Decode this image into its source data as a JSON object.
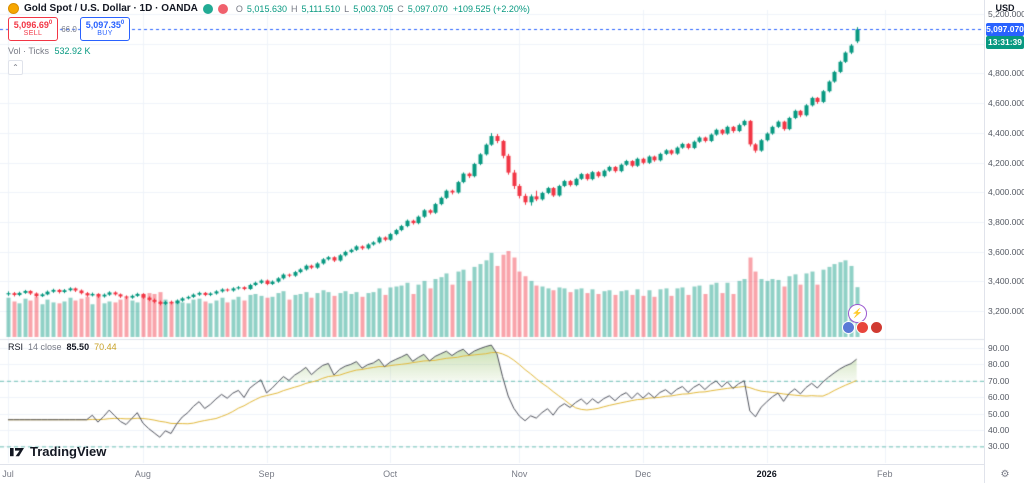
{
  "header": {
    "symbol_title": "Gold Spot / U.S. Dollar · 1D · OANDA",
    "ohlc": {
      "o_label": "O",
      "o": "5,015.630",
      "h_label": "H",
      "h": "5,111.510",
      "l_label": "L",
      "l": "5,003.705",
      "c_label": "C",
      "c": "5,097.070",
      "change": "+109.525 (+2.20%)"
    }
  },
  "trade_panel": {
    "sell_price": "5,096.69",
    "sell_sup": "0",
    "sell_label": "SELL",
    "spread": "66.0",
    "buy_price": "5,097.35",
    "buy_sup": "0",
    "buy_label": "BUY"
  },
  "volume_row": {
    "label": "Vol · Ticks",
    "value": "532.92 K"
  },
  "rsi_legend": {
    "name": "RSI",
    "params": "14 close",
    "value": "85.50",
    "ma_value": "70.44"
  },
  "logo": {
    "text": "TradingView"
  },
  "icons": {
    "gear": "⚙",
    "lightning": "⚡",
    "chevron_up": "⌃"
  },
  "axis": {
    "currency": "USD",
    "price_badge": "5,097.070",
    "countdown": "13:31:39",
    "price_ticks": [
      {
        "value": 5200,
        "label": "5,200.000"
      },
      {
        "value": 5000,
        "label": "5,000.000"
      },
      {
        "value": 4800,
        "label": "4,800.000"
      },
      {
        "value": 4600,
        "label": "4,600.000"
      },
      {
        "value": 4400,
        "label": "4,400.000"
      },
      {
        "value": 4200,
        "label": "4,200.000"
      },
      {
        "value": 4000,
        "label": "4,000.000"
      },
      {
        "value": 3800,
        "label": "3,800.000"
      },
      {
        "value": 3600,
        "label": "3,600.000"
      },
      {
        "value": 3400,
        "label": "3,400.000"
      },
      {
        "value": 3200,
        "label": "3,200.000"
      }
    ],
    "rsi_ticks": [
      {
        "value": 90,
        "label": "90.00"
      },
      {
        "value": 80,
        "label": "80.00"
      },
      {
        "value": 70,
        "label": "70.00"
      },
      {
        "value": 60,
        "label": "60.00"
      },
      {
        "value": 50,
        "label": "50.00"
      },
      {
        "value": 40,
        "label": "40.00"
      },
      {
        "value": 30,
        "label": "30.00"
      }
    ],
    "time_ticks": [
      {
        "index": 0,
        "label": "Jul",
        "major": false
      },
      {
        "index": 24,
        "label": "Aug",
        "major": false
      },
      {
        "index": 46,
        "label": "Sep",
        "major": false
      },
      {
        "index": 68,
        "label": "Oct",
        "major": false
      },
      {
        "index": 91,
        "label": "Nov",
        "major": false
      },
      {
        "index": 113,
        "label": "Dec",
        "major": false
      },
      {
        "index": 135,
        "label": "2026",
        "major": true
      },
      {
        "index": 156,
        "label": "Feb",
        "major": false
      }
    ]
  },
  "colors": {
    "up": "#089981",
    "down": "#F23645",
    "vol_up": "rgba(8,153,129,0.45)",
    "vol_down": "rgba(242,54,69,0.45)",
    "buy_blue": "#2962FF",
    "sell_red": "#F23645",
    "rsi_line": "#50535e",
    "rsi_ma": "#e2b93b",
    "rsi_level": "rgba(8,153,129,0.55)",
    "grid": "#f0f3fa",
    "divider": "#e0e3eb"
  },
  "chart_data": {
    "type": "candlestick",
    "symbol": "Gold Spot / U.S. Dollar",
    "exchange": "OANDA",
    "timeframe": "1D",
    "currency": "USD",
    "price_axis_range": [
      3140,
      5290
    ],
    "volume_unit": "K ticks",
    "last": {
      "open": 5015.63,
      "high": 5111.51,
      "low": 5003.705,
      "close": 5097.07,
      "change": 109.525,
      "change_pct": 2.2,
      "volume_k": 532.92
    },
    "rsi": {
      "period": 14,
      "source": "close",
      "value": 85.5,
      "ma_value": 70.44,
      "levels": [
        70,
        30
      ],
      "range": [
        25,
        95
      ]
    },
    "candles": [
      [
        3312,
        3332,
        3302,
        3320,
        420
      ],
      [
        3320,
        3328,
        3298,
        3308,
        380
      ],
      [
        3308,
        3330,
        3300,
        3322,
        360
      ],
      [
        3322,
        3342,
        3315,
        3335,
        410
      ],
      [
        3335,
        3340,
        3308,
        3318,
        390
      ],
      [
        3318,
        3325,
        3292,
        3300,
        430
      ],
      [
        3300,
        3320,
        3294,
        3312,
        350
      ],
      [
        3312,
        3338,
        3306,
        3330,
        400
      ],
      [
        3330,
        3350,
        3322,
        3342,
        370
      ],
      [
        3342,
        3348,
        3318,
        3328,
        360
      ],
      [
        3328,
        3348,
        3320,
        3340,
        380
      ],
      [
        3340,
        3360,
        3332,
        3352,
        420
      ],
      [
        3352,
        3358,
        3328,
        3338,
        390
      ],
      [
        3338,
        3345,
        3312,
        3320,
        410
      ],
      [
        3320,
        3328,
        3296,
        3305,
        430
      ],
      [
        3305,
        3324,
        3298,
        3315,
        350
      ],
      [
        3315,
        3320,
        3288,
        3298,
        440
      ],
      [
        3298,
        3318,
        3290,
        3310,
        360
      ],
      [
        3310,
        3333,
        3302,
        3325,
        380
      ],
      [
        3325,
        3332,
        3304,
        3312,
        370
      ],
      [
        3312,
        3318,
        3288,
        3298,
        400
      ],
      [
        3298,
        3305,
        3280,
        3290,
        420
      ],
      [
        3290,
        3310,
        3282,
        3302,
        390
      ],
      [
        3302,
        3323,
        3295,
        3315,
        370
      ],
      [
        3315,
        3320,
        3282,
        3290,
        450
      ],
      [
        3290,
        3298,
        3266,
        3275,
        470
      ],
      [
        3275,
        3284,
        3252,
        3262,
        460
      ],
      [
        3262,
        3270,
        3238,
        3248,
        480
      ],
      [
        3248,
        3268,
        3240,
        3260,
        400
      ],
      [
        3260,
        3270,
        3244,
        3252,
        380
      ],
      [
        3252,
        3278,
        3246,
        3270,
        390
      ],
      [
        3270,
        3293,
        3262,
        3285,
        370
      ],
      [
        3285,
        3303,
        3278,
        3295,
        360
      ],
      [
        3295,
        3318,
        3288,
        3310,
        400
      ],
      [
        3310,
        3330,
        3302,
        3322,
        410
      ],
      [
        3322,
        3328,
        3300,
        3308,
        380
      ],
      [
        3308,
        3326,
        3300,
        3318,
        360
      ],
      [
        3318,
        3340,
        3310,
        3332,
        390
      ],
      [
        3332,
        3353,
        3324,
        3345,
        420
      ],
      [
        3345,
        3352,
        3330,
        3338,
        370
      ],
      [
        3338,
        3360,
        3330,
        3352,
        400
      ],
      [
        3352,
        3368,
        3344,
        3360,
        430
      ],
      [
        3360,
        3366,
        3340,
        3348,
        390
      ],
      [
        3348,
        3383,
        3342,
        3375,
        450
      ],
      [
        3375,
        3398,
        3368,
        3390,
        460
      ],
      [
        3390,
        3413,
        3382,
        3405,
        440
      ],
      [
        3405,
        3412,
        3374,
        3382,
        420
      ],
      [
        3382,
        3406,
        3375,
        3398,
        430
      ],
      [
        3398,
        3428,
        3390,
        3420,
        470
      ],
      [
        3420,
        3453,
        3412,
        3445,
        490
      ],
      [
        3445,
        3452,
        3428,
        3438,
        400
      ],
      [
        3438,
        3470,
        3430,
        3462,
        450
      ],
      [
        3462,
        3488,
        3454,
        3480,
        460
      ],
      [
        3480,
        3513,
        3472,
        3505,
        480
      ],
      [
        3505,
        3512,
        3482,
        3492,
        420
      ],
      [
        3492,
        3528,
        3484,
        3520,
        470
      ],
      [
        3520,
        3556,
        3512,
        3548,
        500
      ],
      [
        3548,
        3570,
        3540,
        3562,
        480
      ],
      [
        3562,
        3568,
        3530,
        3540,
        440
      ],
      [
        3540,
        3583,
        3532,
        3575,
        470
      ],
      [
        3575,
        3606,
        3567,
        3598,
        490
      ],
      [
        3598,
        3620,
        3590,
        3612,
        460
      ],
      [
        3612,
        3643,
        3604,
        3635,
        480
      ],
      [
        3635,
        3642,
        3612,
        3622,
        430
      ],
      [
        3622,
        3656,
        3614,
        3648,
        470
      ],
      [
        3648,
        3670,
        3640,
        3662,
        480
      ],
      [
        3662,
        3703,
        3654,
        3695,
        520
      ],
      [
        3695,
        3702,
        3670,
        3680,
        450
      ],
      [
        3680,
        3726,
        3672,
        3718,
        530
      ],
      [
        3718,
        3753,
        3710,
        3745,
        540
      ],
      [
        3745,
        3780,
        3737,
        3772,
        550
      ],
      [
        3772,
        3816,
        3764,
        3808,
        580
      ],
      [
        3808,
        3815,
        3782,
        3792,
        460
      ],
      [
        3792,
        3843,
        3784,
        3835,
        560
      ],
      [
        3835,
        3886,
        3827,
        3878,
        600
      ],
      [
        3878,
        3885,
        3850,
        3862,
        520
      ],
      [
        3862,
        3928,
        3854,
        3920,
        620
      ],
      [
        3920,
        3970,
        3912,
        3962,
        640
      ],
      [
        3962,
        4018,
        3954,
        4010,
        680
      ],
      [
        4010,
        4017,
        3985,
        3998,
        560
      ],
      [
        3998,
        4076,
        3990,
        4068,
        700
      ],
      [
        4068,
        4133,
        4060,
        4125,
        720
      ],
      [
        4125,
        4132,
        4095,
        4108,
        600
      ],
      [
        4108,
        4198,
        4100,
        4190,
        750
      ],
      [
        4190,
        4263,
        4182,
        4255,
        780
      ],
      [
        4255,
        4328,
        4247,
        4320,
        820
      ],
      [
        4320,
        4398,
        4312,
        4378,
        900
      ],
      [
        4378,
        4392,
        4330,
        4345,
        760
      ],
      [
        4345,
        4352,
        4228,
        4245,
        880
      ],
      [
        4245,
        4258,
        4118,
        4132,
        920
      ],
      [
        4132,
        4150,
        4022,
        4042,
        850
      ],
      [
        4042,
        4055,
        3958,
        3975,
        700
      ],
      [
        3975,
        3990,
        3915,
        3932,
        650
      ],
      [
        3932,
        3985,
        3910,
        3972,
        600
      ],
      [
        3972,
        4010,
        3940,
        3952,
        550
      ],
      [
        3952,
        4003,
        3944,
        3995,
        540
      ],
      [
        3995,
        4036,
        3987,
        4028,
        520
      ],
      [
        4028,
        4035,
        3968,
        3978,
        500
      ],
      [
        3978,
        4050,
        3970,
        4042,
        530
      ],
      [
        4042,
        4083,
        4034,
        4075,
        520
      ],
      [
        4075,
        4082,
        4038,
        4048,
        480
      ],
      [
        4048,
        4098,
        4040,
        4090,
        510
      ],
      [
        4090,
        4130,
        4082,
        4122,
        520
      ],
      [
        4122,
        4128,
        4078,
        4088,
        470
      ],
      [
        4088,
        4143,
        4080,
        4135,
        510
      ],
      [
        4135,
        4142,
        4098,
        4108,
        460
      ],
      [
        4108,
        4153,
        4100,
        4145,
        490
      ],
      [
        4145,
        4178,
        4137,
        4170,
        500
      ],
      [
        4170,
        4176,
        4132,
        4142,
        450
      ],
      [
        4142,
        4193,
        4134,
        4185,
        490
      ],
      [
        4185,
        4218,
        4177,
        4210,
        500
      ],
      [
        4210,
        4216,
        4168,
        4178,
        450
      ],
      [
        4178,
        4233,
        4170,
        4225,
        510
      ],
      [
        4225,
        4232,
        4188,
        4198,
        440
      ],
      [
        4198,
        4248,
        4190,
        4240,
        500
      ],
      [
        4240,
        4246,
        4205,
        4215,
        430
      ],
      [
        4215,
        4266,
        4207,
        4258,
        510
      ],
      [
        4258,
        4290,
        4250,
        4282,
        520
      ],
      [
        4282,
        4288,
        4250,
        4260,
        440
      ],
      [
        4260,
        4308,
        4252,
        4300,
        520
      ],
      [
        4300,
        4333,
        4292,
        4325,
        530
      ],
      [
        4325,
        4331,
        4288,
        4298,
        450
      ],
      [
        4298,
        4348,
        4290,
        4340,
        540
      ],
      [
        4340,
        4376,
        4332,
        4368,
        550
      ],
      [
        4368,
        4374,
        4335,
        4345,
        460
      ],
      [
        4345,
        4396,
        4337,
        4388,
        560
      ],
      [
        4388,
        4428,
        4380,
        4420,
        580
      ],
      [
        4420,
        4426,
        4385,
        4395,
        470
      ],
      [
        4395,
        4448,
        4387,
        4440,
        580
      ],
      [
        4440,
        4446,
        4400,
        4412,
        460
      ],
      [
        4412,
        4462,
        4404,
        4452,
        600
      ],
      [
        4452,
        4488,
        4444,
        4480,
        620
      ],
      [
        4480,
        4486,
        4308,
        4322,
        850
      ],
      [
        4322,
        4330,
        4266,
        4280,
        700
      ],
      [
        4280,
        4358,
        4272,
        4350,
        620
      ],
      [
        4350,
        4403,
        4342,
        4395,
        600
      ],
      [
        4395,
        4448,
        4387,
        4440,
        620
      ],
      [
        4440,
        4483,
        4432,
        4475,
        610
      ],
      [
        4475,
        4481,
        4414,
        4425,
        540
      ],
      [
        4425,
        4508,
        4417,
        4500,
        650
      ],
      [
        4500,
        4556,
        4492,
        4548,
        670
      ],
      [
        4548,
        4554,
        4505,
        4518,
        560
      ],
      [
        4518,
        4593,
        4510,
        4585,
        680
      ],
      [
        4585,
        4643,
        4577,
        4635,
        700
      ],
      [
        4635,
        4641,
        4595,
        4608,
        560
      ],
      [
        4608,
        4688,
        4600,
        4680,
        720
      ],
      [
        4680,
        4753,
        4672,
        4745,
        750
      ],
      [
        4745,
        4818,
        4737,
        4810,
        780
      ],
      [
        4810,
        4886,
        4802,
        4878,
        800
      ],
      [
        4878,
        4948,
        4870,
        4940,
        820
      ],
      [
        4940,
        4998,
        4930,
        4987.545,
        760
      ],
      [
        5015.63,
        5111.51,
        5003.705,
        5097.07,
        532.92
      ]
    ]
  }
}
